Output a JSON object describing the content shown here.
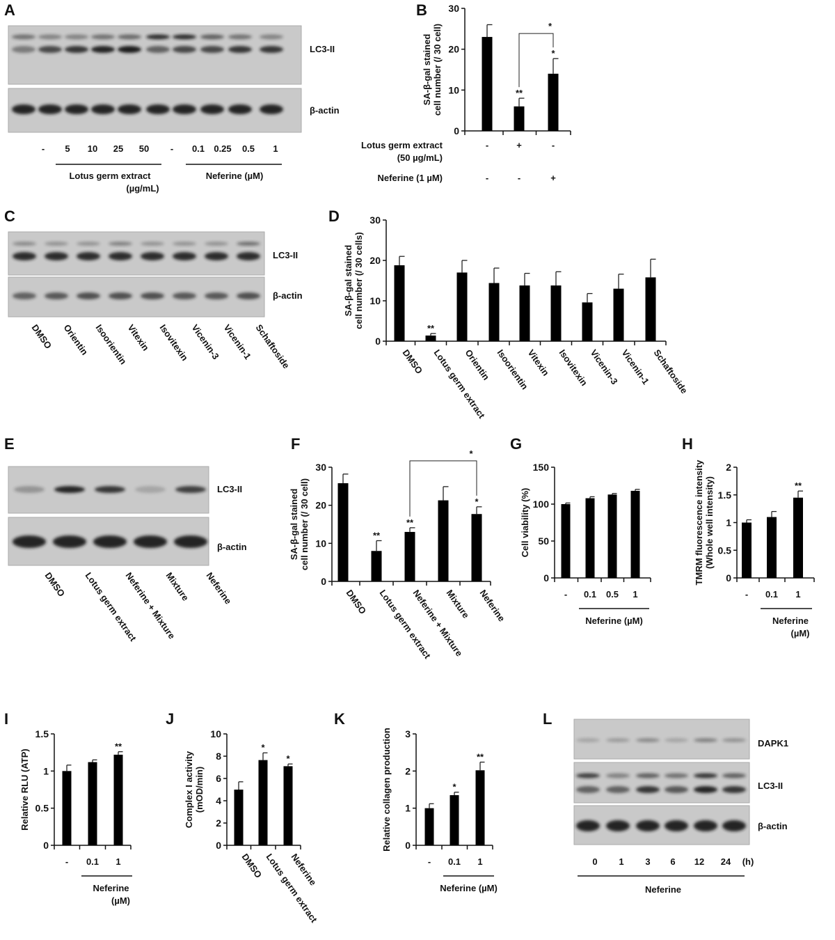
{
  "panel_letters": [
    "A",
    "B",
    "C",
    "D",
    "E",
    "F",
    "G",
    "H",
    "I",
    "J",
    "K",
    "L"
  ],
  "blots": {
    "A": {
      "bands": [
        "LC3-II",
        "β-actin"
      ],
      "lanes": [
        "-",
        "5",
        "10",
        "25",
        "50",
        "-",
        "0.1",
        "0.25",
        "0.5",
        "1"
      ],
      "groups": [
        {
          "line1": "Lotus germ extract",
          "line2": "(µg/mL)"
        },
        {
          "line1": "Neferine (µM)",
          "line2": ""
        }
      ]
    },
    "C": {
      "bands": [
        "LC3-II",
        "β-actin"
      ],
      "lanes": [
        "DMSO",
        "Orientin",
        "Isoorientin",
        "Vitexin",
        "Isovitexin",
        "Vicenin-3",
        "Vicenin-1",
        "Schaftoside"
      ]
    },
    "E": {
      "bands": [
        "LC3-II",
        "β-actin"
      ],
      "lanes": [
        "DMSO",
        "Lotus germ extract",
        "Neferine + Mixture",
        "Mixture",
        "Neferine"
      ]
    },
    "L": {
      "bands": [
        "DAPK1",
        "LC3-II",
        "β-actin"
      ],
      "lanes": [
        "0",
        "1",
        "3",
        "6",
        "12",
        "24"
      ],
      "unit": "(h)",
      "group": "Neferine"
    }
  },
  "chart_data": [
    {
      "id": "B",
      "type": "bar",
      "ylabel": [
        "SA-β-gal stained",
        "cell number (/ 30 cell)"
      ],
      "ylim": [
        0,
        30
      ],
      "yticks": [
        "0",
        "10",
        "20",
        "30"
      ],
      "categories": [
        "-/-",
        "+/-",
        "-/+"
      ],
      "values": [
        23,
        6,
        14
      ],
      "errors": [
        3,
        2,
        3.7
      ],
      "stars": [
        "",
        "**",
        "*"
      ],
      "comparison": {
        "between": [
          1,
          2
        ],
        "label": "*"
      },
      "x_rows": [
        {
          "label": [
            "Lotus germ extract",
            "(50 µg/mL)"
          ],
          "values": [
            "-",
            "+",
            "-"
          ]
        },
        {
          "label": [
            "Neferine (1 µM)"
          ],
          "values": [
            "-",
            "-",
            "+"
          ]
        }
      ]
    },
    {
      "id": "D",
      "type": "bar",
      "ylabel": [
        "SA-β-gal stained",
        "cell number (/ 30 cells)"
      ],
      "ylim": [
        0,
        30
      ],
      "yticks": [
        "0",
        "10",
        "20",
        "30"
      ],
      "categories": [
        "DMSO",
        "Lotus germ extract",
        "Orientin",
        "Isoorientin",
        "Vitexin",
        "Isovitexin",
        "Vicenin-3",
        "Vicenin-1",
        "Schaftoside"
      ],
      "values": [
        18.8,
        1.4,
        17,
        14.4,
        13.8,
        13.8,
        9.6,
        13,
        15.8
      ],
      "errors": [
        2.2,
        0.5,
        3,
        3.7,
        3,
        3.4,
        2.2,
        3.6,
        4.5
      ],
      "stars": [
        "",
        "**",
        "",
        "",
        "",
        "",
        "",
        "",
        ""
      ]
    },
    {
      "id": "F",
      "type": "bar",
      "ylabel": [
        "SA-β-gal stained",
        "cell number (/ 30 cell)"
      ],
      "ylim": [
        0,
        30
      ],
      "yticks": [
        "0",
        "10",
        "20",
        "30"
      ],
      "categories": [
        "DMSO",
        "Lotus germ extract",
        "Neferine + Mixture",
        "Mixture",
        "Neferine"
      ],
      "values": [
        25.8,
        8,
        13,
        21.3,
        17.7
      ],
      "errors": [
        2.4,
        2.7,
        1.1,
        3.6,
        1.9
      ],
      "stars": [
        "",
        "**",
        "**",
        "",
        "*"
      ],
      "comparison": {
        "between": [
          2,
          4
        ],
        "label": "*"
      }
    },
    {
      "id": "G",
      "type": "bar",
      "ylabel": [
        "",
        "Cell viability (%)"
      ],
      "ylim": [
        0,
        150
      ],
      "yticks": [
        "0",
        "50",
        "100",
        "150"
      ],
      "categories": [
        "-",
        "0.1",
        "0.5",
        "1"
      ],
      "values": [
        100,
        108,
        113,
        118
      ],
      "errors": [
        1.5,
        2,
        1.5,
        2
      ],
      "stars": [
        "",
        "",
        "",
        ""
      ],
      "group": {
        "label": "Neferine (µM)",
        "from": 1,
        "to": 3
      }
    },
    {
      "id": "H",
      "type": "bar",
      "ylabel": [
        "TMRM fluorescence intensity",
        "(Whole well intensity)"
      ],
      "ylim": [
        0,
        2
      ],
      "yticks": [
        "0",
        "0.5",
        "1",
        "1.5",
        "2"
      ],
      "categories": [
        "-",
        "0.1",
        "1"
      ],
      "values": [
        1,
        1.1,
        1.45
      ],
      "errors": [
        0.05,
        0.1,
        0.12
      ],
      "stars": [
        "",
        "",
        "**"
      ],
      "group": {
        "label": "Neferine",
        "label2": "(µM)",
        "from": 1,
        "to": 2
      }
    },
    {
      "id": "I",
      "type": "bar",
      "ylabel": [
        "",
        "Relative RLU (ATP)"
      ],
      "ylim": [
        0,
        1.5
      ],
      "yticks": [
        "0",
        "0.5",
        "1",
        "1.5"
      ],
      "categories": [
        "-",
        "0.1",
        "1"
      ],
      "values": [
        1,
        1.12,
        1.22
      ],
      "errors": [
        0.08,
        0.03,
        0.04
      ],
      "stars": [
        "",
        "",
        "**"
      ],
      "group": {
        "label": "Neferine",
        "label2": "(µM)",
        "from": 1,
        "to": 2
      }
    },
    {
      "id": "J",
      "type": "bar",
      "ylabel": [
        "Complex I activity",
        "(mOD/min)"
      ],
      "ylim": [
        0,
        10
      ],
      "yticks": [
        "0",
        "2",
        "4",
        "6",
        "8",
        "10"
      ],
      "categories": [
        "DMSO",
        "Lotus germ extract",
        "Neferine"
      ],
      "values": [
        5,
        7.65,
        7.1
      ],
      "errors": [
        0.7,
        0.65,
        0.2
      ],
      "stars": [
        "",
        "*",
        "*"
      ]
    },
    {
      "id": "K",
      "type": "bar",
      "ylabel": [
        "",
        "Relative collagen production"
      ],
      "ylim": [
        0,
        3
      ],
      "yticks": [
        "0",
        "1",
        "2",
        "3"
      ],
      "categories": [
        "-",
        "0.1",
        "1"
      ],
      "values": [
        1,
        1.35,
        2.02
      ],
      "errors": [
        0.12,
        0.08,
        0.22
      ],
      "stars": [
        "",
        "*",
        "**"
      ],
      "group": {
        "label": "Neferine (µM)",
        "from": 1,
        "to": 2
      }
    }
  ]
}
